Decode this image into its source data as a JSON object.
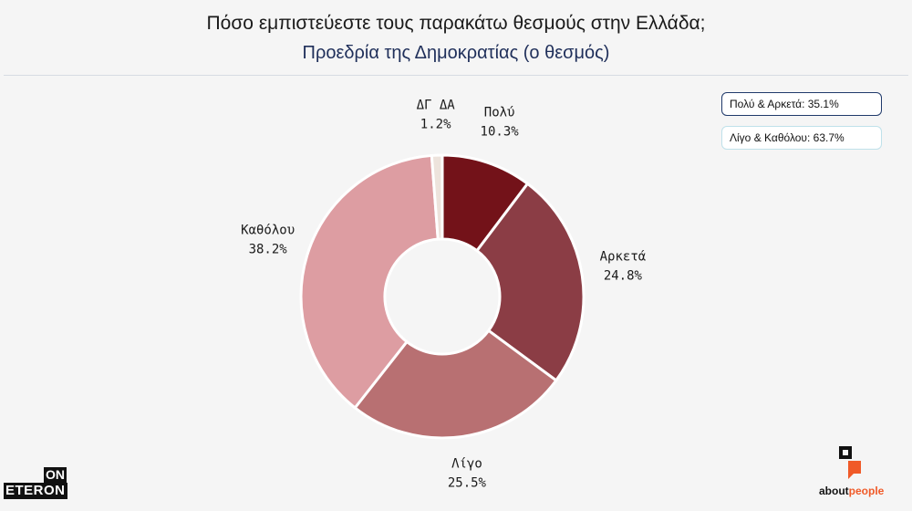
{
  "header": {
    "title": "Πόσο εμπιστεύεστε τους παρακάτω θεσμούς στην Ελλάδα;",
    "subtitle": "Προεδρία της Δημοκρατίας (ο θεσμός)"
  },
  "summary": {
    "positive": "Πολύ & Αρκετά: 35.1%",
    "negative": "Λίγο & Καθόλου: 63.7%"
  },
  "chart_data": {
    "type": "pie",
    "subtype": "donut",
    "title": "Προεδρία της Δημοκρατίας (ο θεσμός)",
    "categories": [
      "Πολύ",
      "Αρκετά",
      "Λίγο",
      "Καθόλου",
      "ΔΓ ΔΑ"
    ],
    "values": [
      10.3,
      24.8,
      25.5,
      38.2,
      1.2
    ],
    "value_labels": [
      "10.3%",
      "24.8%",
      "25.5%",
      "38.2%",
      "1.2%"
    ],
    "colors": [
      "#731219",
      "#8b3d45",
      "#b87072",
      "#dd9da2",
      "#ede3dc"
    ],
    "legend": "none"
  },
  "logos": {
    "left_line1": "ON",
    "left_line2": "ETERON",
    "right_word_a": "about",
    "right_word_b": "people"
  }
}
